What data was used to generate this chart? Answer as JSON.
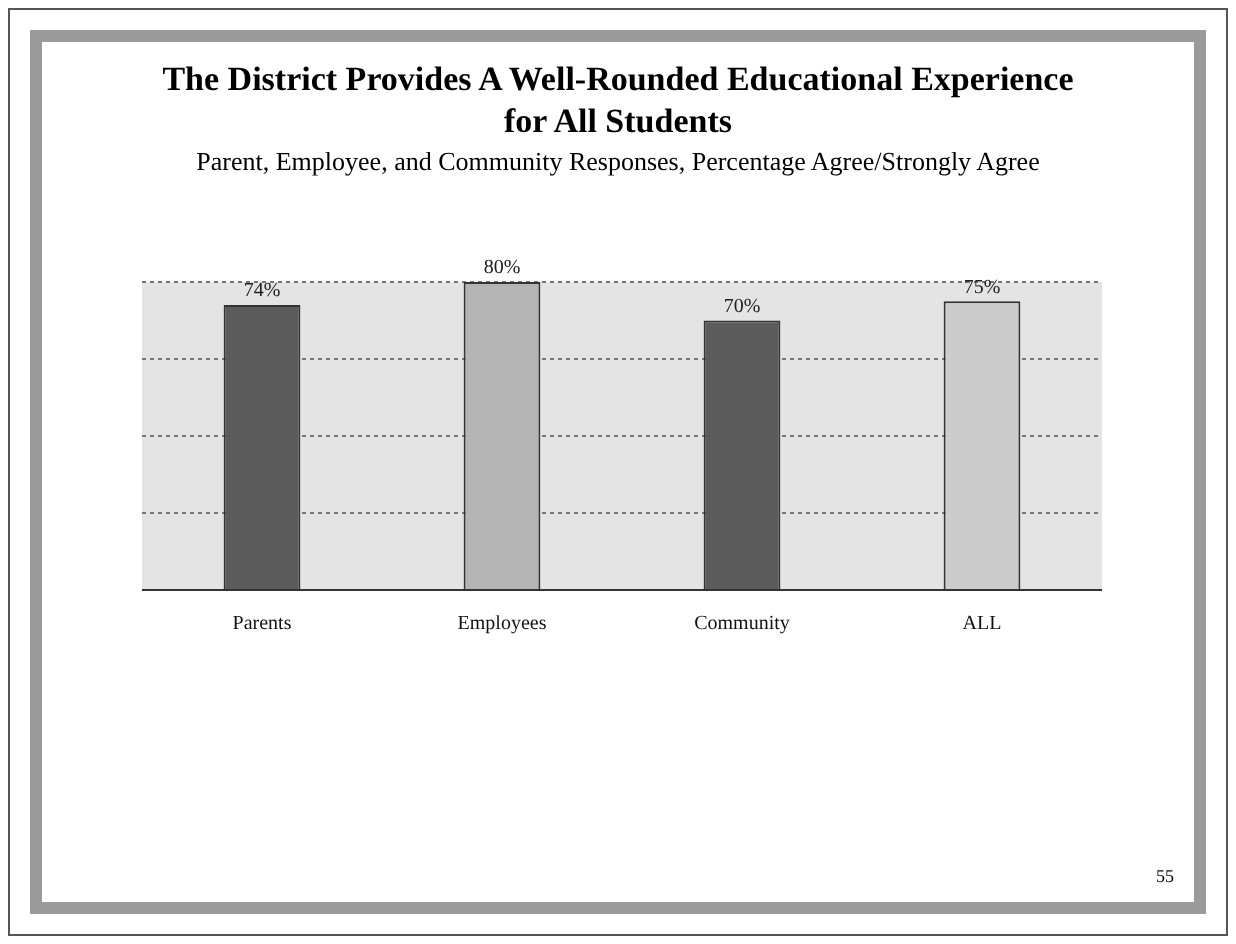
{
  "chart_data": {
    "type": "bar",
    "title": "The District Provides A Well-Rounded Educational Experience for All Students",
    "subtitle": "Parent, Employee, and Community Responses, Percentage Agree/Strongly Agree",
    "categories": [
      "Parents",
      "Employees",
      "Community",
      "ALL"
    ],
    "values": [
      74,
      80,
      70,
      75
    ],
    "value_labels": [
      "74%",
      "80%",
      "70%",
      "75%"
    ],
    "colors": [
      "#5c5c5c",
      "#b4b4b4",
      "#5c5c5c",
      "#cccccc"
    ],
    "grid": "y",
    "tick_labels": "x",
    "annotations": [
      "55"
    ]
  }
}
